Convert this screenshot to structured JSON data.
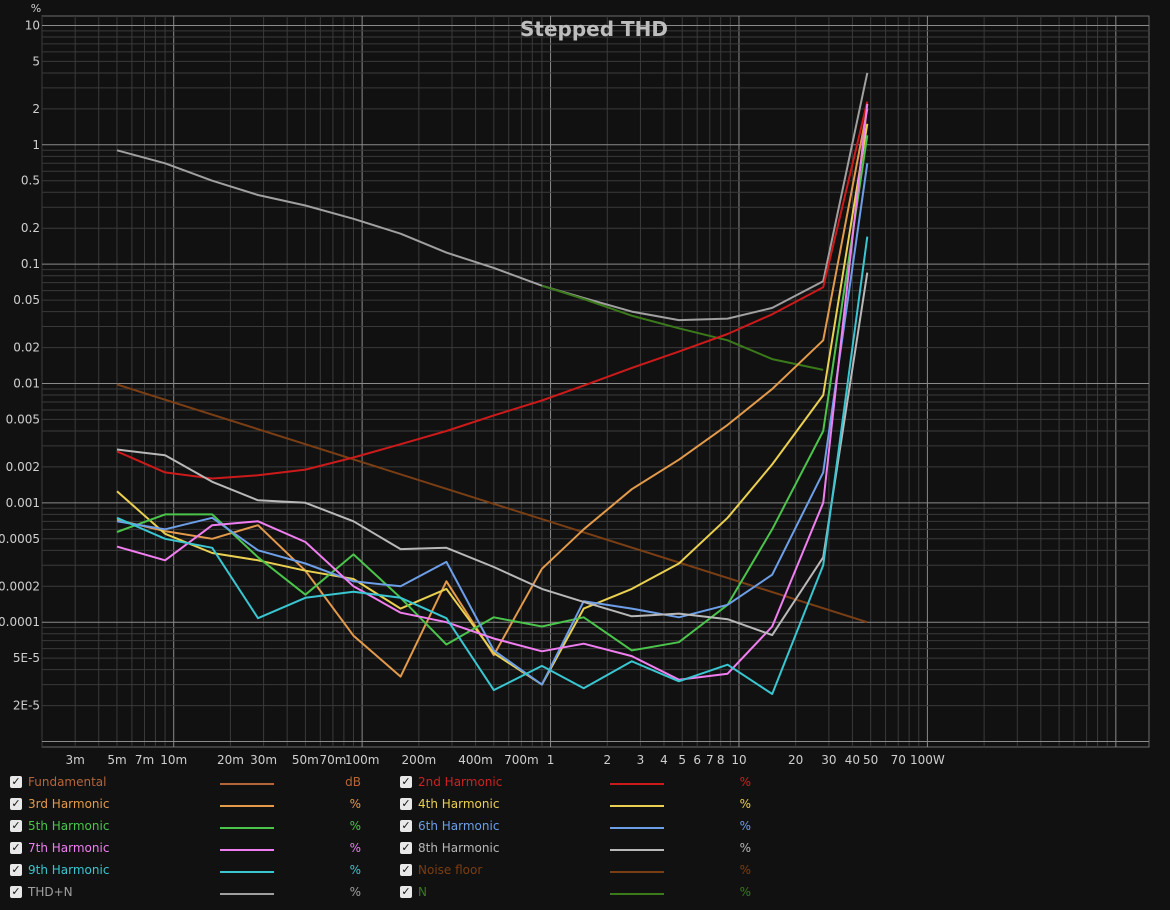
{
  "chart_data": {
    "type": "line",
    "title": "Stepped THD",
    "ylabel": "%",
    "xlabel": "",
    "xscale": "log",
    "yscale": "log",
    "xlim": [
      0.002,
      1500
    ],
    "ylim": [
      9e-06,
      12
    ],
    "x_ticks": [
      {
        "v": 0.003,
        "label": "3m"
      },
      {
        "v": 0.005,
        "label": "5m"
      },
      {
        "v": 0.007,
        "label": "7m"
      },
      {
        "v": 0.01,
        "label": "10m"
      },
      {
        "v": 0.02,
        "label": "20m"
      },
      {
        "v": 0.03,
        "label": "30m"
      },
      {
        "v": 0.05,
        "label": "50m"
      },
      {
        "v": 0.07,
        "label": "70m"
      },
      {
        "v": 0.1,
        "label": "100m"
      },
      {
        "v": 0.2,
        "label": "200m"
      },
      {
        "v": 0.4,
        "label": "400m"
      },
      {
        "v": 0.7,
        "label": "700m"
      },
      {
        "v": 1,
        "label": "1"
      },
      {
        "v": 2,
        "label": "2"
      },
      {
        "v": 3,
        "label": "3"
      },
      {
        "v": 4,
        "label": "4"
      },
      {
        "v": 5,
        "label": "5"
      },
      {
        "v": 6,
        "label": "6"
      },
      {
        "v": 7,
        "label": "7"
      },
      {
        "v": 8,
        "label": "8"
      },
      {
        "v": 10,
        "label": "10"
      },
      {
        "v": 20,
        "label": "20"
      },
      {
        "v": 30,
        "label": "30"
      },
      {
        "v": 40,
        "label": "40"
      },
      {
        "v": 50,
        "label": "50"
      },
      {
        "v": 70,
        "label": "70"
      },
      {
        "v": 100,
        "label": "100W"
      }
    ],
    "y_ticks": [
      {
        "v": 10,
        "label": "10"
      },
      {
        "v": 5,
        "label": "5"
      },
      {
        "v": 2,
        "label": "2"
      },
      {
        "v": 1,
        "label": "1"
      },
      {
        "v": 0.5,
        "label": "0.5"
      },
      {
        "v": 0.2,
        "label": "0.2"
      },
      {
        "v": 0.1,
        "label": "0.1"
      },
      {
        "v": 0.05,
        "label": "0.05"
      },
      {
        "v": 0.02,
        "label": "0.02"
      },
      {
        "v": 0.01,
        "label": "0.01"
      },
      {
        "v": 0.005,
        "label": "0.005"
      },
      {
        "v": 0.002,
        "label": "0.002"
      },
      {
        "v": 0.001,
        "label": "0.001"
      },
      {
        "v": 0.0005,
        "label": "0.0005"
      },
      {
        "v": 0.0002,
        "label": "0.0002"
      },
      {
        "v": 0.0001,
        "label": "0.0001"
      },
      {
        "v": 5e-05,
        "label": "5E-5"
      },
      {
        "v": 2e-05,
        "label": "2E-5"
      }
    ],
    "series": [
      {
        "name": "Noise floor",
        "color": "#7a3e14",
        "x": [
          0.005,
          48
        ],
        "y": [
          0.0098,
          0.0001
        ]
      },
      {
        "name": "THD+N",
        "color": "#a0a0a0",
        "x": [
          0.005,
          0.009,
          0.016,
          0.028,
          0.05,
          0.09,
          0.16,
          0.28,
          0.5,
          0.9,
          1.5,
          2.7,
          4.8,
          8.7,
          15,
          28,
          48
        ],
        "y": [
          0.9,
          0.7,
          0.5,
          0.38,
          0.31,
          0.24,
          0.18,
          0.125,
          0.093,
          0.066,
          0.052,
          0.04,
          0.034,
          0.035,
          0.043,
          0.072,
          4.0
        ]
      },
      {
        "name": "N",
        "color": "#3a7a1a",
        "x": [
          0.9,
          1.5,
          2.7,
          4.8,
          8.7,
          15,
          28
        ],
        "y": [
          0.066,
          0.051,
          0.037,
          0.029,
          0.023,
          0.016,
          0.013
        ]
      },
      {
        "name": "2nd Harmonic",
        "color": "#cc1a1a",
        "x": [
          0.005,
          0.009,
          0.016,
          0.028,
          0.05,
          0.09,
          0.16,
          0.28,
          0.5,
          0.9,
          1.5,
          2.7,
          4.8,
          8.7,
          15,
          28,
          48
        ],
        "y": [
          0.0027,
          0.0018,
          0.0016,
          0.0017,
          0.0019,
          0.0024,
          0.0031,
          0.004,
          0.0054,
          0.0072,
          0.0096,
          0.0135,
          0.0185,
          0.026,
          0.038,
          0.064,
          2.3
        ]
      },
      {
        "name": "3rd Harmonic",
        "color": "#e39a4a",
        "x": [
          0.005,
          0.009,
          0.016,
          0.028,
          0.05,
          0.09,
          0.16,
          0.28,
          0.5,
          0.9,
          1.5,
          2.7,
          4.8,
          8.7,
          15,
          28,
          48
        ],
        "y": [
          0.00072,
          0.00058,
          0.0005,
          0.00065,
          0.00027,
          7.7e-05,
          3.5e-05,
          0.00022,
          5.3e-05,
          0.00028,
          0.0006,
          0.0013,
          0.0023,
          0.0045,
          0.009,
          0.023,
          2.0
        ]
      },
      {
        "name": "4th Harmonic",
        "color": "#ead050",
        "x": [
          0.005,
          0.009,
          0.016,
          0.028,
          0.05,
          0.09,
          0.16,
          0.28,
          0.5,
          0.9,
          1.5,
          2.7,
          4.8,
          8.7,
          15,
          28,
          48
        ],
        "y": [
          0.00125,
          0.00055,
          0.00038,
          0.00033,
          0.00027,
          0.00023,
          0.00013,
          0.00019,
          5.5e-05,
          3e-05,
          0.00013,
          0.00019,
          0.00031,
          0.00075,
          0.0021,
          0.008,
          1.5
        ]
      },
      {
        "name": "5th Harmonic",
        "color": "#4bc44b",
        "x": [
          0.005,
          0.009,
          0.016,
          0.028,
          0.05,
          0.09,
          0.16,
          0.28,
          0.5,
          0.9,
          1.5,
          2.7,
          4.8,
          8.7,
          15,
          28,
          48
        ],
        "y": [
          0.00057,
          0.0008,
          0.0008,
          0.00035,
          0.00017,
          0.00037,
          0.00016,
          6.5e-05,
          0.00011,
          9.2e-05,
          0.00011,
          5.8e-05,
          6.8e-05,
          0.00014,
          0.0006,
          0.004,
          1.2
        ]
      },
      {
        "name": "6th Harmonic",
        "color": "#6d9ee8",
        "x": [
          0.005,
          0.009,
          0.016,
          0.028,
          0.05,
          0.09,
          0.16,
          0.28,
          0.5,
          0.9,
          1.5,
          2.7,
          4.8,
          8.7,
          15,
          28,
          48
        ],
        "y": [
          0.0007,
          0.0006,
          0.00075,
          0.0004,
          0.00031,
          0.00022,
          0.0002,
          0.00032,
          5.8e-05,
          3e-05,
          0.00015,
          0.00013,
          0.00011,
          0.00014,
          0.00025,
          0.0018,
          0.7
        ]
      },
      {
        "name": "7th Harmonic",
        "color": "#f07ef0",
        "x": [
          0.005,
          0.009,
          0.016,
          0.028,
          0.05,
          0.09,
          0.16,
          0.28,
          0.5,
          0.9,
          1.5,
          2.7,
          4.8,
          8.7,
          15,
          28,
          48
        ],
        "y": [
          0.00043,
          0.00033,
          0.00065,
          0.0007,
          0.00047,
          0.0002,
          0.00012,
          0.0001,
          7.3e-05,
          5.7e-05,
          6.6e-05,
          5.2e-05,
          3.3e-05,
          3.7e-05,
          9.2e-05,
          0.001,
          2.2
        ]
      },
      {
        "name": "8th Harmonic",
        "color": "#b8b8b8",
        "x": [
          0.005,
          0.009,
          0.016,
          0.028,
          0.05,
          0.09,
          0.16,
          0.28,
          0.5,
          0.9,
          1.5,
          2.7,
          4.8,
          8.7,
          15,
          28,
          48
        ],
        "y": [
          0.0028,
          0.0025,
          0.0015,
          0.00105,
          0.001,
          0.0007,
          0.00041,
          0.00042,
          0.00029,
          0.00019,
          0.000148,
          0.000112,
          0.000118,
          0.000106,
          7.8e-05,
          0.00035,
          0.085
        ]
      },
      {
        "name": "9th Harmonic",
        "color": "#39c6d0",
        "x": [
          0.005,
          0.009,
          0.016,
          0.028,
          0.05,
          0.09,
          0.16,
          0.28,
          0.5,
          0.9,
          1.5,
          2.7,
          4.8,
          8.7,
          15,
          28,
          48
        ],
        "y": [
          0.00075,
          0.0005,
          0.00042,
          0.000108,
          0.00016,
          0.00018,
          0.00016,
          0.000108,
          2.7e-05,
          4.3e-05,
          2.8e-05,
          4.7e-05,
          3.2e-05,
          4.4e-05,
          2.5e-05,
          0.0003,
          0.17
        ]
      }
    ],
    "legend": [
      {
        "name": "Fundamental",
        "unit": "dB",
        "color": "#b5653a",
        "line_color": "#b5653a"
      },
      {
        "name": "2nd Harmonic",
        "unit": "%",
        "color": "#cc2222",
        "line_color": "#cc1a1a"
      },
      {
        "name": "3rd Harmonic",
        "unit": "%",
        "color": "#e39a4a",
        "line_color": "#e39a4a"
      },
      {
        "name": "4th Harmonic",
        "unit": "%",
        "color": "#ead050",
        "line_color": "#ead050"
      },
      {
        "name": "5th Harmonic",
        "unit": "%",
        "color": "#4bc44b",
        "line_color": "#4bc44b"
      },
      {
        "name": "6th Harmonic",
        "unit": "%",
        "color": "#6d9ee8",
        "line_color": "#6d9ee8"
      },
      {
        "name": "7th Harmonic",
        "unit": "%",
        "color": "#f07ef0",
        "line_color": "#f07ef0"
      },
      {
        "name": "8th Harmonic",
        "unit": "%",
        "color": "#b8b8b8",
        "line_color": "#b8b8b8"
      },
      {
        "name": "9th Harmonic",
        "unit": "%",
        "color": "#39c6d0",
        "line_color": "#39c6d0"
      },
      {
        "name": "Noise floor",
        "unit": "%",
        "color": "#7a3e14",
        "line_color": "#7a3e14"
      },
      {
        "name": "THD+N",
        "unit": "%",
        "color": "#a0a0a0",
        "line_color": "#a0a0a0"
      },
      {
        "name": "N",
        "unit": "%",
        "color": "#3a7a1a",
        "line_color": "#3a7a1a"
      }
    ]
  }
}
